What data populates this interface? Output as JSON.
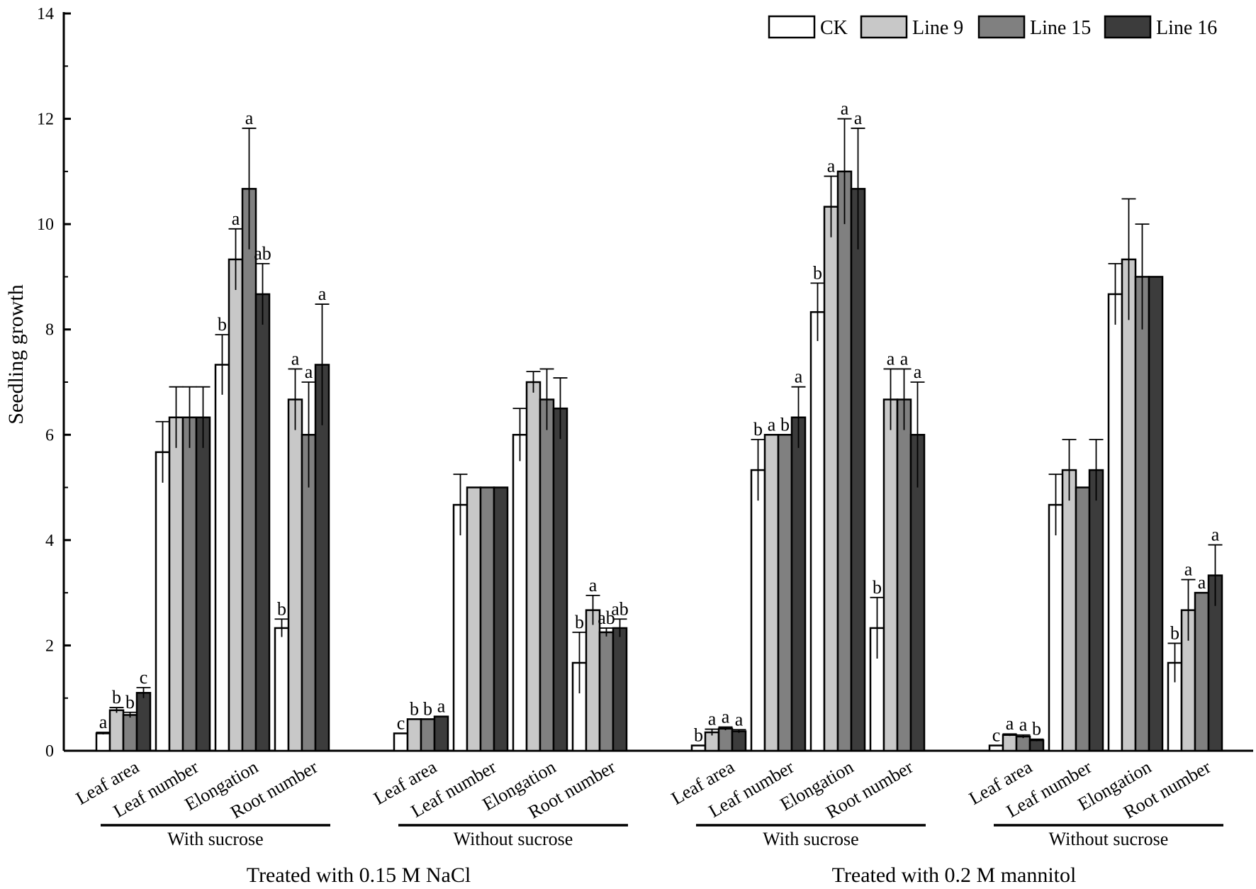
{
  "chart_data": {
    "type": "bar",
    "title": "",
    "ylabel": "Seedling growth",
    "xlabel": "",
    "ylim": [
      0,
      14
    ],
    "yticks": [
      0,
      2,
      4,
      6,
      8,
      10,
      12,
      14
    ],
    "legend_position": "top-right",
    "series": [
      {
        "name": "CK",
        "color": "#ffffff"
      },
      {
        "name": "Line 9",
        "color": "#c8c8c8"
      },
      {
        "name": "Line 15",
        "color": "#808080"
      },
      {
        "name": "Line 16",
        "color": "#3c3c3c"
      }
    ],
    "categories": [
      "Leaf area",
      "Leaf number",
      "Elongation",
      "Root number"
    ],
    "treatments": [
      {
        "label": "Treated with 0.15 M NaCl",
        "conditions": [
          {
            "label": "With sucrose",
            "groups": [
              {
                "values": [
                  0.33,
                  0.77,
                  0.68,
                  1.1
                ],
                "errors": [
                  0.02,
                  0.05,
                  0.05,
                  0.1
                ],
                "letters": [
                  "a",
                  "b",
                  "b",
                  "c"
                ]
              },
              {
                "values": [
                  5.67,
                  6.33,
                  6.33,
                  6.33
                ],
                "errors": [
                  0.58,
                  0.58,
                  0.58,
                  0.58
                ],
                "letters": [
                  "",
                  "",
                  "",
                  ""
                ]
              },
              {
                "values": [
                  7.33,
                  9.33,
                  10.67,
                  8.67
                ],
                "errors": [
                  0.57,
                  0.58,
                  1.15,
                  0.58
                ],
                "letters": [
                  "b",
                  "a",
                  "a",
                  "ab"
                ]
              },
              {
                "values": [
                  2.33,
                  6.67,
                  6.0,
                  7.33
                ],
                "errors": [
                  0.17,
                  0.58,
                  1.0,
                  1.15
                ],
                "letters": [
                  "b",
                  "a",
                  "a",
                  "a"
                ]
              }
            ]
          },
          {
            "label": "Without sucrose",
            "groups": [
              {
                "values": [
                  0.33,
                  0.6,
                  0.6,
                  0.65
                ],
                "errors": [
                  0.0,
                  0.0,
                  0.0,
                  0.0
                ],
                "letters": [
                  "c",
                  "b",
                  "b",
                  "a"
                ]
              },
              {
                "values": [
                  4.67,
                  5.0,
                  5.0,
                  5.0
                ],
                "errors": [
                  0.58,
                  0.0,
                  0.0,
                  0.0
                ],
                "letters": [
                  "",
                  "",
                  "",
                  ""
                ]
              },
              {
                "values": [
                  6.0,
                  7.0,
                  6.67,
                  6.5
                ],
                "errors": [
                  0.5,
                  0.2,
                  0.58,
                  0.58
                ],
                "letters": [
                  "",
                  "",
                  "",
                  ""
                ]
              },
              {
                "values": [
                  1.67,
                  2.67,
                  2.25,
                  2.33
                ],
                "errors": [
                  0.58,
                  0.28,
                  0.08,
                  0.17
                ],
                "letters": [
                  "b",
                  "a",
                  "ab",
                  "ab"
                ]
              }
            ]
          }
        ]
      },
      {
        "label": "Treated with 0.2 M mannitol",
        "conditions": [
          {
            "label": "With sucrose",
            "groups": [
              {
                "values": [
                  0.1,
                  0.35,
                  0.42,
                  0.37
                ],
                "errors": [
                  0.0,
                  0.06,
                  0.03,
                  0.03
                ],
                "letters": [
                  "b",
                  "a",
                  "a",
                  "a"
                ]
              },
              {
                "values": [
                  5.33,
                  6.0,
                  6.0,
                  6.33
                ],
                "errors": [
                  0.58,
                  0.0,
                  0.0,
                  0.58
                ],
                "letters": [
                  "b",
                  "a",
                  "b",
                  "a"
                ]
              },
              {
                "values": [
                  8.33,
                  10.33,
                  11.0,
                  10.67
                ],
                "errors": [
                  0.55,
                  0.58,
                  1.0,
                  1.15
                ],
                "letters": [
                  "b",
                  "a",
                  "a",
                  "a"
                ]
              },
              {
                "values": [
                  2.33,
                  6.67,
                  6.67,
                  6.0
                ],
                "errors": [
                  0.58,
                  0.58,
                  0.58,
                  1.0
                ],
                "letters": [
                  "b",
                  "a",
                  "a",
                  "a"
                ]
              }
            ]
          },
          {
            "label": "Without sucrose",
            "groups": [
              {
                "values": [
                  0.1,
                  0.3,
                  0.27,
                  0.2
                ],
                "errors": [
                  0.0,
                  0.02,
                  0.03,
                  0.02
                ],
                "letters": [
                  "c",
                  "a",
                  "a",
                  "b"
                ]
              },
              {
                "values": [
                  4.67,
                  5.33,
                  5.0,
                  5.33
                ],
                "errors": [
                  0.58,
                  0.58,
                  0.0,
                  0.58
                ],
                "letters": [
                  "",
                  "",
                  "",
                  ""
                ]
              },
              {
                "values": [
                  8.67,
                  9.33,
                  9.0,
                  9.0
                ],
                "errors": [
                  0.58,
                  1.15,
                  1.0,
                  0.0
                ],
                "letters": [
                  "",
                  "",
                  "",
                  ""
                ]
              },
              {
                "values": [
                  1.67,
                  2.67,
                  3.0,
                  3.33
                ],
                "errors": [
                  0.37,
                  0.58,
                  0.0,
                  0.58
                ],
                "letters": [
                  "b",
                  "a",
                  "a",
                  "a"
                ]
              }
            ]
          }
        ]
      }
    ]
  }
}
